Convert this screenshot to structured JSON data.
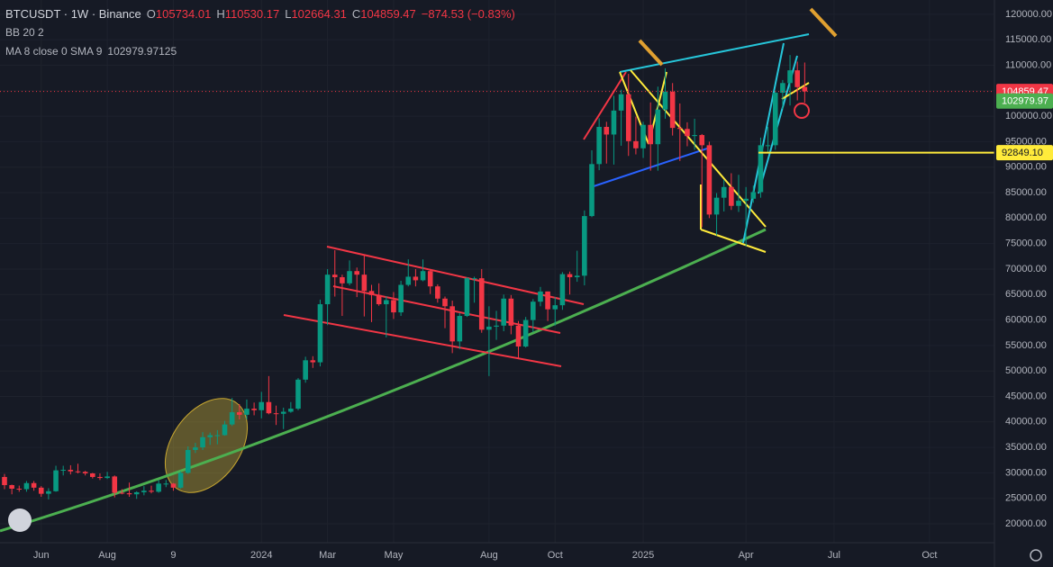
{
  "chart_data": {
    "type": "candlestick",
    "header": {
      "symbol": "BTCUSDT · 1W · Binance",
      "open_label": "O",
      "open": 105734.01,
      "high_label": "H",
      "high": 110530.17,
      "low_label": "L",
      "low": 102664.31,
      "close_label": "C",
      "close": 104859.47,
      "change": "−874.53 (−0.83%)"
    },
    "indicators": [
      {
        "name": "BB 20 2"
      },
      {
        "name": "MA 8 close 0 SMA 9",
        "value": 102979.97125
      }
    ],
    "up_color": "#089981",
    "down_color": "#f23645",
    "categories": [
      null,
      null,
      null,
      null,
      null,
      "Jun",
      null,
      null,
      null,
      null,
      null,
      null,
      null,
      null,
      "Aug",
      null,
      null,
      null,
      null,
      null,
      null,
      null,
      null,
      "9",
      null,
      null,
      null,
      null,
      null,
      null,
      null,
      null,
      null,
      null,
      null,
      "2024",
      null,
      null,
      null,
      null,
      null,
      null,
      null,
      null,
      "Mar",
      null,
      null,
      null,
      null,
      null,
      null,
      null,
      null,
      "May",
      null,
      null,
      null,
      null,
      null,
      null,
      null,
      null,
      null,
      null,
      null,
      null,
      "Aug",
      null,
      null,
      null,
      null,
      null,
      null,
      null,
      null,
      "Oct",
      null,
      null,
      null,
      null,
      null,
      null,
      null,
      null,
      null,
      null,
      null,
      "2025",
      null,
      null,
      null,
      null,
      null,
      null,
      null,
      null,
      null,
      null,
      null,
      null,
      null,
      "Apr",
      null,
      null,
      null,
      null,
      null,
      null,
      null,
      null,
      null,
      null,
      null,
      "Jul",
      null,
      null,
      null,
      null,
      null,
      null,
      null,
      null,
      null,
      null,
      null,
      null,
      "Oct",
      null,
      null,
      null,
      null,
      null,
      null,
      null,
      null
    ],
    "open": [
      29200,
      27600,
      26900,
      26800,
      28000,
      27100,
      25900,
      26400,
      30500,
      30600,
      30300,
      30200,
      29900,
      29200,
      29000,
      29300,
      26100,
      26000,
      25800,
      26200,
      26500,
      26300,
      27900,
      27900,
      27100,
      30000,
      34500,
      35000,
      37000,
      37400,
      37400,
      39500,
      41900,
      41400,
      42600,
      42300,
      43900,
      41700,
      41600,
      42000,
      42600,
      48300,
      52100,
      51700,
      63100,
      68900,
      68400,
      67200,
      69600,
      68900,
      65700,
      64900,
      63100,
      63900,
      61500,
      66900,
      68500,
      67800,
      69600,
      66600,
      64200,
      62700,
      55800,
      60800,
      68200,
      68200,
      58100,
      58700,
      58900,
      64200,
      58900,
      54800,
      60000,
      63600,
      65600,
      62100,
      62900,
      69000,
      68400,
      68700,
      80400,
      90600,
      97900,
      96400,
      101100,
      104300,
      95100,
      93700,
      98300,
      94500,
      101300,
      104800,
      97700,
      97500,
      96100,
      96300,
      94300,
      80700,
      84000,
      86100,
      82400,
      83400,
      83800,
      85100,
      94300,
      94300,
      104600,
      106500,
      109000,
      105734.01,
      null,
      null,
      null,
      null,
      null,
      null,
      null,
      null,
      null,
      null,
      null,
      null,
      null,
      null,
      null,
      null,
      null,
      null,
      null,
      null,
      null,
      null,
      null,
      null,
      null
    ],
    "high": [
      29800,
      27700,
      27500,
      28400,
      28400,
      27400,
      27000,
      31400,
      31400,
      31500,
      31800,
      30400,
      30000,
      29900,
      30200,
      29500,
      26800,
      28100,
      26400,
      27400,
      27500,
      28600,
      28600,
      28000,
      30300,
      35200,
      35900,
      38000,
      37900,
      38400,
      40200,
      44700,
      43500,
      44400,
      43800,
      45900,
      49000,
      43200,
      42800,
      43900,
      48600,
      52800,
      52900,
      64000,
      70000,
      73700,
      68900,
      71700,
      70300,
      72800,
      66900,
      67200,
      64700,
      65500,
      67700,
      71900,
      70000,
      71900,
      70000,
      67000,
      64600,
      63800,
      61400,
      68400,
      68500,
      70000,
      62700,
      61800,
      65000,
      64900,
      59800,
      60600,
      64100,
      66500,
      65600,
      64500,
      69400,
      69500,
      73600,
      81500,
      93300,
      99600,
      98900,
      104000,
      105200,
      108300,
      99900,
      98900,
      102700,
      105800,
      109400,
      106500,
      102500,
      98800,
      99500,
      96500,
      95000,
      84900,
      87500,
      88800,
      88500,
      86100,
      86400,
      95800,
      97900,
      104900,
      107100,
      112000,
      110700,
      110530.17,
      null,
      null,
      null,
      null,
      null,
      null,
      null,
      null,
      null,
      null,
      null,
      null,
      null,
      null,
      null,
      null,
      null,
      null,
      null,
      null,
      null,
      null,
      null,
      null,
      null
    ],
    "low": [
      26800,
      25800,
      26300,
      26300,
      26500,
      25300,
      24800,
      26300,
      29500,
      29700,
      29900,
      29500,
      28900,
      28600,
      28800,
      25200,
      25800,
      25300,
      24900,
      25600,
      26000,
      26100,
      27200,
      26500,
      26900,
      29800,
      33900,
      34500,
      35500,
      35600,
      37300,
      39200,
      40500,
      40500,
      41300,
      40700,
      41500,
      39400,
      38600,
      41800,
      42300,
      47700,
      50600,
      50900,
      59000,
      64600,
      60800,
      66800,
      64500,
      60700,
      59600,
      62800,
      56600,
      60200,
      60800,
      66600,
      66600,
      67600,
      65100,
      63400,
      58400,
      53500,
      54300,
      60600,
      63400,
      57500,
      49000,
      56100,
      57800,
      57200,
      52500,
      54600,
      57600,
      62700,
      59800,
      58900,
      62000,
      65000,
      67500,
      66800,
      80200,
      89400,
      90700,
      90500,
      94200,
      92200,
      92500,
      91800,
      89300,
      89300,
      99500,
      96200,
      91200,
      94100,
      93400,
      78200,
      80000,
      76600,
      81300,
      81600,
      81200,
      74500,
      83000,
      84000,
      92800,
      93400,
      101400,
      102100,
      103100,
      102664.31,
      null,
      null,
      null,
      null,
      null,
      null,
      null,
      null,
      null,
      null,
      null,
      null,
      null,
      null,
      null,
      null,
      null,
      null,
      null,
      null,
      null,
      null,
      null,
      null,
      null
    ],
    "close": [
      27600,
      26900,
      26800,
      28000,
      27100,
      25900,
      26400,
      30500,
      30600,
      30300,
      30200,
      29900,
      29200,
      29000,
      29300,
      26100,
      26000,
      25800,
      26200,
      26500,
      26300,
      27900,
      27900,
      27100,
      30000,
      34500,
      35000,
      37000,
      37400,
      37400,
      39500,
      41900,
      41400,
      42600,
      42300,
      43900,
      41700,
      41600,
      42000,
      42600,
      48300,
      52100,
      51700,
      63100,
      68900,
      68400,
      67200,
      69600,
      68900,
      65700,
      64900,
      63100,
      63900,
      61500,
      66900,
      68500,
      67800,
      69600,
      66600,
      64200,
      62700,
      55800,
      60800,
      68200,
      68200,
      58100,
      58700,
      58900,
      64200,
      58900,
      54800,
      60000,
      63600,
      65600,
      62100,
      62900,
      69000,
      68400,
      68700,
      80400,
      90600,
      97900,
      96400,
      101100,
      104300,
      95100,
      93700,
      98300,
      94500,
      101300,
      104800,
      97700,
      97500,
      96100,
      96300,
      94300,
      80700,
      84000,
      86100,
      82400,
      83400,
      83800,
      85100,
      94300,
      94300,
      104600,
      106500,
      109000,
      105700,
      104859.47,
      null,
      null,
      null,
      null,
      null,
      null,
      null,
      null,
      null,
      null,
      null,
      null,
      null,
      null,
      null,
      null,
      null,
      null,
      null,
      null,
      null,
      null,
      null,
      null,
      null
    ],
    "ylim": [
      16300,
      122800
    ],
    "yticks": [
      {
        "value": 20000,
        "label": "20000.00"
      },
      {
        "value": 25000,
        "label": "25000.00"
      },
      {
        "value": 30000,
        "label": "30000.00"
      },
      {
        "value": 35000,
        "label": "35000.00"
      },
      {
        "value": 40000,
        "label": "40000.00"
      },
      {
        "value": 45000,
        "label": "45000.00"
      },
      {
        "value": 50000,
        "label": "50000.00"
      },
      {
        "value": 55000,
        "label": "55000.00"
      },
      {
        "value": 60000,
        "label": "60000.00"
      },
      {
        "value": 65000,
        "label": "65000.00"
      },
      {
        "value": 70000,
        "label": "70000.00"
      },
      {
        "value": 75000,
        "label": "75000.00"
      },
      {
        "value": 80000,
        "label": "80000.00"
      },
      {
        "value": 85000,
        "label": "85000.00"
      },
      {
        "value": 90000,
        "label": "90000.00"
      },
      {
        "value": 95000,
        "label": "95000.00"
      },
      {
        "value": 100000,
        "label": "100000.00"
      },
      {
        "value": 105000,
        "label": "105000.00"
      },
      {
        "value": 110000,
        "label": "110000.00"
      },
      {
        "value": 115000,
        "label": "115000.00"
      },
      {
        "value": 120000,
        "label": "120000.00"
      }
    ],
    "grid": true,
    "price_lines": [
      {
        "value": 104859.47,
        "label": "104859.47",
        "color": "#f23645",
        "line": "dotted"
      },
      {
        "value": 102979.97,
        "label": "102979.97",
        "color": "#4caf50",
        "line": "none"
      },
      {
        "value": 92849.1,
        "label": "92849.10",
        "color": "#ffeb3b",
        "line": "solid"
      }
    ]
  }
}
